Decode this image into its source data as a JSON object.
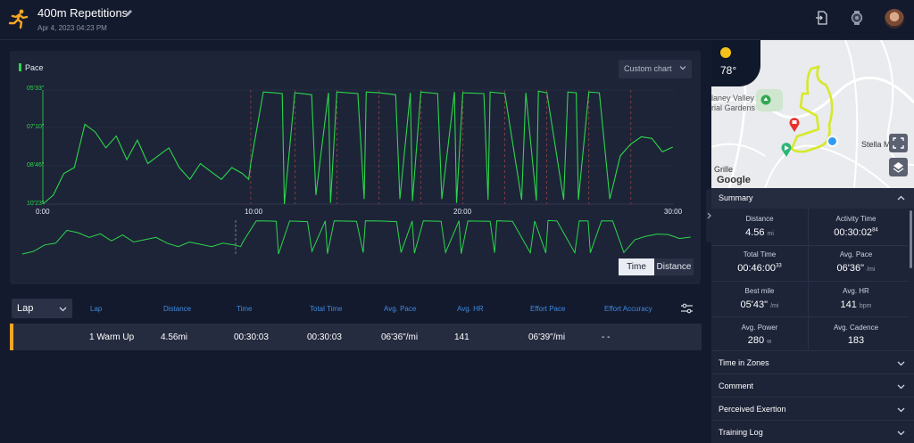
{
  "header": {
    "title": "400m Repetitions",
    "date": "Apr 4, 2023 04:23 PM"
  },
  "chart": {
    "legend": "Pace",
    "custom_chart_label": "Custom chart",
    "toggle_time": "Time",
    "toggle_distance": "Distance"
  },
  "chart_data": {
    "type": "line",
    "series": [
      {
        "name": "Pace",
        "color": "#2cd64b"
      }
    ],
    "y_ticks": [
      "05'33\"",
      "07'10\"",
      "08'46\"",
      "10'23\""
    ],
    "x_ticks": [
      "0:00",
      "10:00",
      "20:00",
      "30:00"
    ],
    "xlim_minutes": [
      0,
      30.05
    ],
    "ylim_pace": [
      "05'33\"",
      "10'23\""
    ],
    "repetition_count": 10,
    "x_minutes": [
      0,
      0.5,
      1,
      1.5,
      2,
      2.5,
      3,
      3.5,
      4,
      4.5,
      5,
      5.5,
      6,
      6.5,
      7,
      7.5,
      8,
      8.5,
      9,
      9.5,
      9.8,
      9.9,
      10.5,
      11,
      11.4,
      11.5,
      12,
      12.8,
      13,
      13.6,
      13.7,
      14,
      15,
      15.3,
      15.4,
      16,
      16.8,
      17,
      17.5,
      17.6,
      18,
      18.8,
      19,
      19.6,
      19.7,
      20,
      21,
      21.2,
      21.3,
      22,
      22.8,
      23,
      23.5,
      23.6,
      24,
      24.8,
      25,
      25.4,
      25.5,
      26,
      26.5,
      27,
      27.5,
      28,
      28.5,
      29,
      29.5,
      30
    ],
    "pace_seconds": [
      623,
      600,
      545,
      530,
      420,
      440,
      480,
      450,
      510,
      460,
      520,
      500,
      480,
      530,
      560,
      520,
      540,
      560,
      530,
      545,
      560,
      520,
      338,
      340,
      342,
      623,
      340,
      345,
      600,
      340,
      620,
      338,
      342,
      610,
      338,
      340,
      345,
      610,
      340,
      615,
      338,
      342,
      610,
      338,
      620,
      340,
      342,
      612,
      338,
      342,
      612,
      340,
      614,
      336,
      340,
      612,
      338,
      340,
      612,
      338,
      340,
      610,
      500,
      470,
      452,
      456,
      490,
      478
    ]
  },
  "laps": {
    "selector_label": "Lap",
    "headers": [
      "Lap",
      "Distance",
      "Time",
      "Total Time",
      "Avg. Pace",
      "Avg. HR",
      "Effort Pace",
      "Effort Accuracy"
    ],
    "rows": [
      {
        "lap": "1 Warm Up",
        "distance": "4.56mi",
        "time": "00:30:03",
        "total_time": "00:30:03",
        "avg_pace": "06'36\"/mi",
        "avg_hr": "141",
        "effort_pace": "06'39\"/mi",
        "effort_accuracy": "- -"
      }
    ]
  },
  "map": {
    "temperature": "78°",
    "labels": [
      "laney Valley",
      "rial Gardens",
      "Stella M",
      "Grille"
    ],
    "attribution": "Google"
  },
  "summary": {
    "title": "Summary",
    "distance_label": "Distance",
    "distance_value": "4.56",
    "distance_unit": "mi",
    "activity_time_label": "Activity Time",
    "activity_time_value": "00:30:02",
    "activity_time_sub": "84",
    "total_time_label": "Total Time",
    "total_time_value": "00:46:00",
    "total_time_sub": "33",
    "avg_pace_label": "Avg. Pace",
    "avg_pace_value": "06'36\"",
    "avg_pace_unit": "/mi",
    "best_mile_label": "Best mile",
    "best_mile_value": "05'43\"",
    "best_mile_unit": "/mi",
    "avg_hr_label": "Avg. HR",
    "avg_hr_value": "141",
    "avg_hr_unit": "bpm",
    "avg_power_label": "Avg. Power",
    "avg_power_value": "280",
    "avg_power_unit": "w",
    "avg_cadence_label": "Avg. Cadence",
    "avg_cadence_value": "183"
  },
  "sections": [
    "Time in Zones",
    "Comment",
    "Perceived Exertion",
    "Training Log"
  ]
}
